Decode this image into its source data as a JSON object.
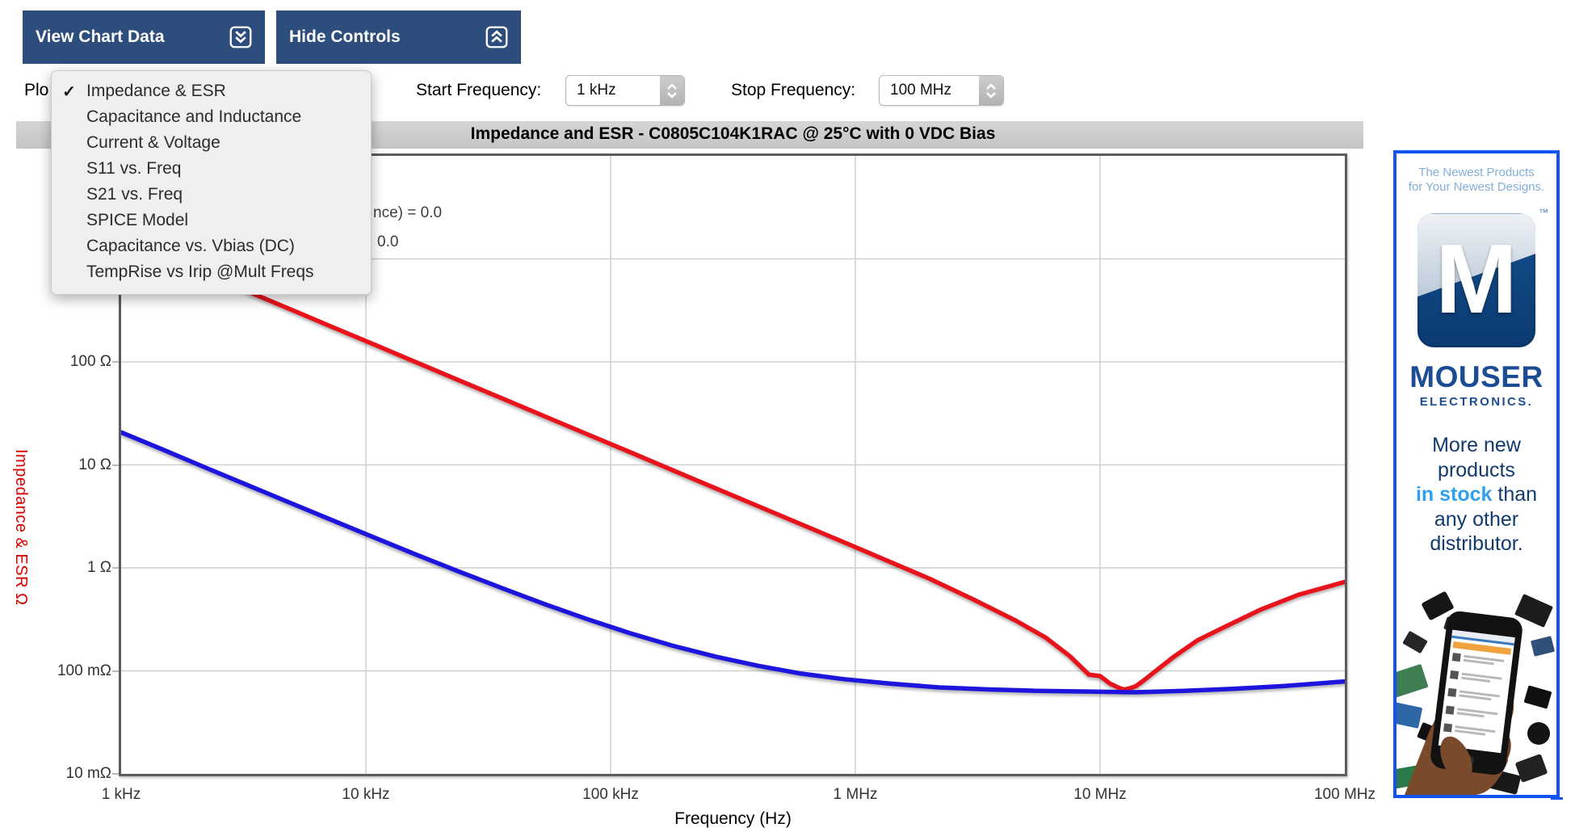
{
  "toolbar": {
    "view_chart_data_label": "View Chart Data",
    "hide_controls_label": "Hide Controls",
    "button_color": "#2d4d7d"
  },
  "controls": {
    "plot_label_visible": "Plo",
    "start_frequency_label": "Start Frequency:",
    "start_frequency_value": "1 kHz",
    "stop_frequency_label": "Stop Frequency:",
    "stop_frequency_value": "100 MHz"
  },
  "plot_menu": {
    "checkmark": "✓",
    "items": [
      {
        "label": "Impedance & ESR",
        "checked": true
      },
      {
        "label": "Capacitance and Inductance",
        "checked": false
      },
      {
        "label": "Current & Voltage",
        "checked": false
      },
      {
        "label": "S11 vs. Freq",
        "checked": false
      },
      {
        "label": "S21 vs. Freq",
        "checked": false
      },
      {
        "label": "SPICE Model",
        "checked": false
      },
      {
        "label": "Capacitance vs. Vbias (DC)",
        "checked": false
      },
      {
        "label": "TempRise vs Irip @Mult Freqs",
        "checked": false
      }
    ]
  },
  "chart": {
    "title": "Impedance and ESR - C0805C104K1RAC @ 25°C with 0 VDC Bias",
    "legend_fragment_1": "nce) = 0.0",
    "legend_fragment_2": "0.0"
  },
  "chart_data": {
    "type": "line",
    "title": "Impedance and ESR - C0805C104K1RAC @ 25°C with 0 VDC Bias",
    "xlabel": "Frequency (Hz)",
    "ylabel": "Impedance & ESR Ω",
    "x_scale": "log",
    "y_scale": "log",
    "xlim": [
      1000,
      100000000
    ],
    "ylim": [
      0.01,
      10000
    ],
    "grid": true,
    "grid_color": "#cfcfcf",
    "x_ticks": [
      {
        "value": 1000,
        "label": "1 kHz"
      },
      {
        "value": 10000,
        "label": "10 kHz"
      },
      {
        "value": 100000,
        "label": "100 kHz"
      },
      {
        "value": 1000000,
        "label": "1 MHz"
      },
      {
        "value": 10000000,
        "label": "10 MHz"
      },
      {
        "value": 100000000,
        "label": "100 MHz"
      }
    ],
    "y_ticks_visible": [
      {
        "value": 100,
        "label": "100 Ω"
      },
      {
        "value": 10,
        "label": "10 Ω"
      },
      {
        "value": 1,
        "label": "1 Ω"
      },
      {
        "value": 0.1,
        "label": "100 mΩ"
      },
      {
        "value": 0.01,
        "label": "10 mΩ"
      }
    ],
    "x_gridlines": [
      10000,
      100000,
      1000000,
      10000000
    ],
    "y_gridlines": [
      1000,
      100,
      10,
      1,
      0.1
    ],
    "series": [
      {
        "name": "Impedance",
        "color": "#e8131b",
        "x": [
          1000,
          1500,
          2200,
          3300,
          5000,
          7500,
          11000,
          16000,
          24000,
          36000,
          54000,
          80000,
          120000,
          180000,
          270000,
          400000,
          600000,
          900000,
          1400000,
          2000000,
          3000000,
          4500000,
          6000000,
          7500000,
          9000000,
          10000000,
          11000000,
          12000000,
          12600000,
          13300000,
          14000000,
          15000000,
          17000000,
          20000000,
          25000000,
          32000000,
          45000000,
          65000000,
          100000000
        ],
        "y": [
          1592,
          1061,
          723,
          482,
          318,
          212,
          145,
          99.5,
          66.3,
          44.2,
          29.5,
          19.9,
          13.3,
          8.84,
          5.89,
          3.98,
          2.65,
          1.77,
          1.13,
          0.79,
          0.5,
          0.31,
          0.21,
          0.14,
          0.092,
          0.089,
          0.075,
          0.068,
          0.066,
          0.068,
          0.071,
          0.08,
          0.101,
          0.137,
          0.198,
          0.264,
          0.39,
          0.55,
          0.73
        ]
      },
      {
        "name": "ESR",
        "color": "#1d14dd",
        "x": [
          1000,
          1500,
          2200,
          3300,
          5000,
          7500,
          11000,
          16000,
          24000,
          36000,
          54000,
          80000,
          120000,
          180000,
          270000,
          400000,
          600000,
          900000,
          1400000,
          2200000,
          3500000,
          5500000,
          9000000,
          14000000,
          22000000,
          35000000,
          55000000,
          100000000
        ],
        "y": [
          20.7,
          13.9,
          9.46,
          6.33,
          4.2,
          2.82,
          1.94,
          1.35,
          0.92,
          0.635,
          0.443,
          0.319,
          0.232,
          0.175,
          0.137,
          0.112,
          0.094,
          0.083,
          0.075,
          0.069,
          0.066,
          0.064,
          0.063,
          0.062,
          0.064,
          0.067,
          0.071,
          0.079
        ]
      }
    ]
  },
  "ad": {
    "tagline_line1": "The Newest Products",
    "tagline_line2": "for Your Newest Designs.",
    "logo_letter": "M",
    "trademark": "™",
    "brand": "MOUSER",
    "brand_sub": "ELECTRONICS.",
    "copy_line1": "More new",
    "copy_line2": "products",
    "copy_line3_highlight": "in stock",
    "copy_line3_rest": " than",
    "copy_line4": "any other",
    "copy_line5": "distributor.",
    "border_color": "#1353ef"
  }
}
